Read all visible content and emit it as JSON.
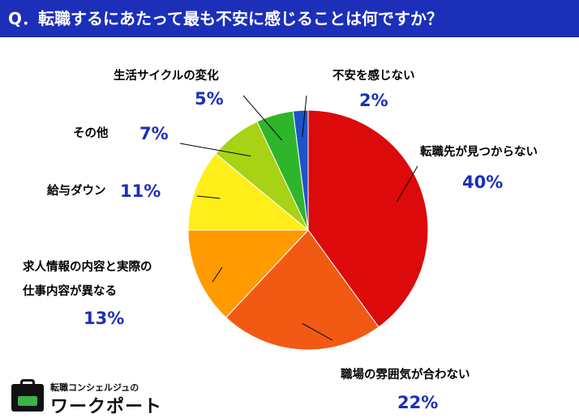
{
  "title": "Q．転職するにあたって最も不安に感じることは何ですか？",
  "chart_data": {
    "type": "pie",
    "categories": [
      "転職先が見つからない",
      "職場の雰囲気が合わない",
      "求人情報の内容と実際の仕事内容が異なる",
      "給与ダウン",
      "その他",
      "生活サイクルの変化",
      "不安を感じない"
    ],
    "label_lines": [
      [
        "転職先が見つからない"
      ],
      [
        "職場の雰囲気が合わない"
      ],
      [
        "求人情報の内容と実際の",
        "仕事内容が異なる"
      ],
      [
        "給与ダウン"
      ],
      [
        "その他"
      ],
      [
        "生活サイクルの変化"
      ],
      [
        "不安を感じない"
      ]
    ],
    "values": [
      40,
      22,
      13,
      11,
      7,
      5,
      2
    ],
    "value_labels": [
      "40%",
      "22%",
      "13%",
      "11%",
      "7%",
      "5%",
      "2%"
    ],
    "colors": [
      "#dc0a0a",
      "#f25a14",
      "#ff9a00",
      "#ffee1a",
      "#a8d214",
      "#2fb52a",
      "#1c54c8"
    ],
    "start_angle_deg": 0,
    "direction": "clockwise"
  },
  "logo": {
    "small_text": "転職コンシェルジュの",
    "big_text": "ワークポート"
  }
}
